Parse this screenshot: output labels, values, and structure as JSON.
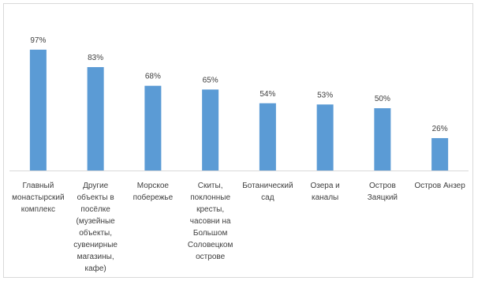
{
  "chart_data": {
    "type": "bar",
    "title": "",
    "xlabel": "",
    "ylabel": "",
    "ylim": [
      0,
      100
    ],
    "grid": false,
    "bar_color": "#5b9bd5",
    "categories": [
      [
        "Главный",
        "монастырский",
        "комплекс"
      ],
      [
        "Другие",
        "объекты в",
        "посёлке",
        "(музейные",
        "объекты,",
        "сувенирные",
        "магазины,",
        "кафе)"
      ],
      [
        "Морское",
        "побережье"
      ],
      [
        "Скиты,",
        "поклонные",
        "кресты,",
        "часовни на",
        "Большом",
        "Соловецком",
        "острове"
      ],
      [
        "Ботанический",
        "сад"
      ],
      [
        "Озера и",
        "каналы"
      ],
      [
        "Остров",
        "Заяцкий"
      ],
      [
        "Остров Анзер"
      ]
    ],
    "values": [
      97,
      83,
      68,
      65,
      54,
      53,
      50,
      26
    ],
    "value_labels": [
      "97%",
      "83%",
      "68%",
      "65%",
      "54%",
      "53%",
      "50%",
      "26%"
    ]
  }
}
